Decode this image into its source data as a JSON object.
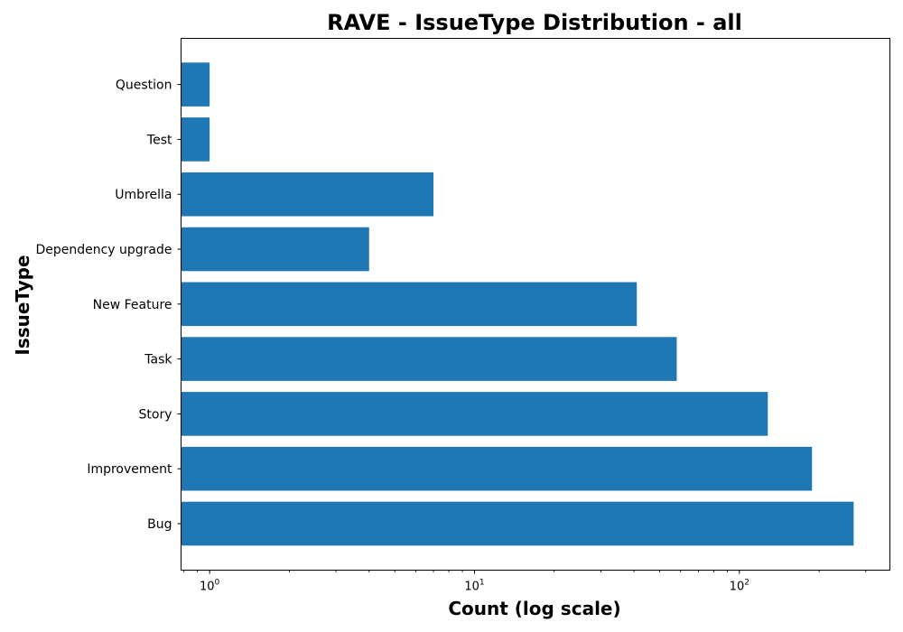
{
  "chart_data": {
    "type": "bar",
    "orientation": "horizontal",
    "title": "RAVE - IssueType Distribution - all",
    "xlabel": "Count (log scale)",
    "ylabel": "IssueType",
    "x_scale": "log",
    "xlim": [
      0.78,
      370
    ],
    "x_ticks": [
      {
        "base": "10",
        "exp": "0",
        "value": 1
      },
      {
        "base": "10",
        "exp": "1",
        "value": 10
      },
      {
        "base": "10",
        "exp": "2",
        "value": 100
      }
    ],
    "categories": [
      "Bug",
      "Improvement",
      "Story",
      "Task",
      "New Feature",
      "Dependency upgrade",
      "Umbrella",
      "Test",
      "Question"
    ],
    "values": [
      270,
      188,
      128,
      58,
      41,
      4,
      7,
      1,
      1
    ],
    "bar_color": "#1f77b4",
    "grid": false
  }
}
